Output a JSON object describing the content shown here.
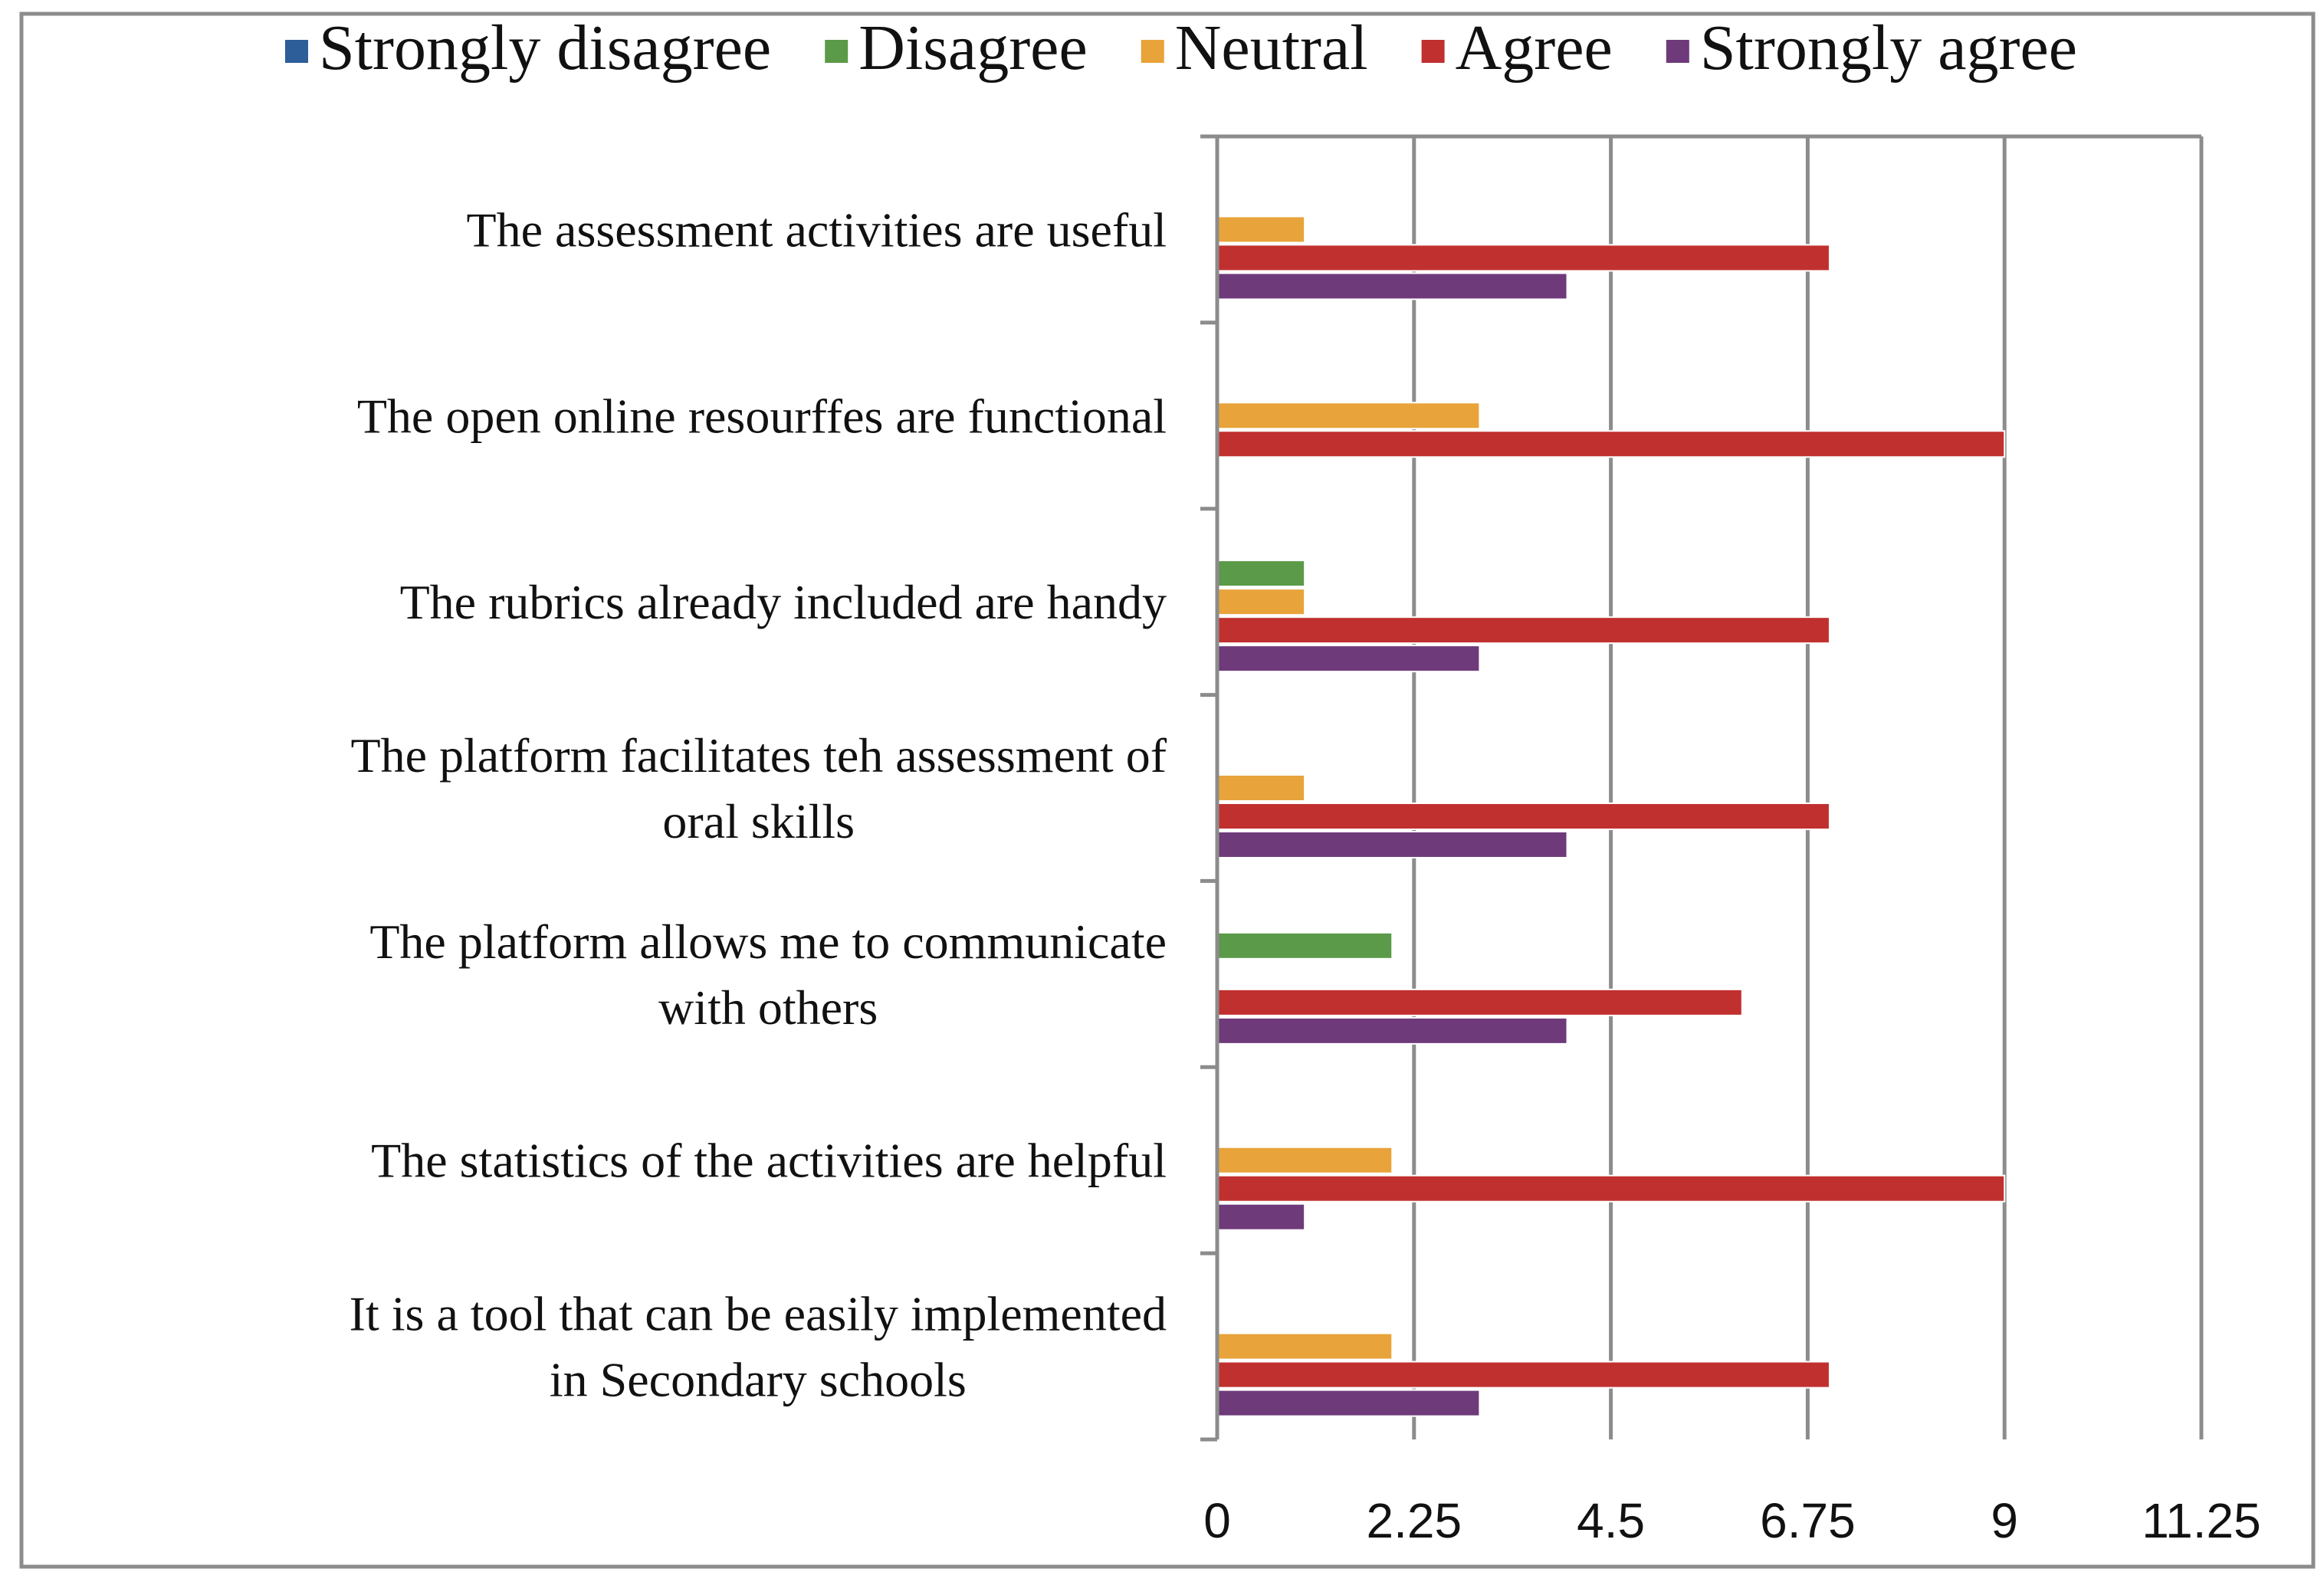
{
  "chart_data": {
    "type": "bar",
    "orientation": "horizontal",
    "title": "",
    "xlabel": "",
    "ylabel": "",
    "xlim": [
      0,
      11.25
    ],
    "ticks": [
      "0",
      "2.25",
      "4.5",
      "6.75",
      "9",
      "11.25"
    ],
    "tick_values": [
      0,
      2.25,
      4.5,
      6.75,
      9,
      11.25
    ],
    "grid": true,
    "legend_position": "top",
    "categories": [
      [
        "The assessment activities are useful"
      ],
      [
        "The open online resourffes are functional"
      ],
      [
        "The rubrics already included are handy"
      ],
      [
        "The platform facilitates teh assessment of",
        "oral skills"
      ],
      [
        "The platform allows me to communicate",
        "with others"
      ],
      [
        "The statistics of the activities are helpful"
      ],
      [
        "It is a tool that can be easily implemented",
        "in Secondary schools"
      ]
    ],
    "series": [
      {
        "name": "Strongly disagree",
        "color": "#2E5E99",
        "values": [
          0,
          0,
          0,
          0,
          0,
          0,
          0
        ]
      },
      {
        "name": "Disagree",
        "color": "#5B9A48",
        "values": [
          0,
          0,
          1,
          0,
          2,
          0,
          0
        ]
      },
      {
        "name": "Neutral",
        "color": "#E8A33A",
        "values": [
          1,
          3,
          1,
          1,
          0,
          2,
          2
        ]
      },
      {
        "name": "Agree",
        "color": "#C0302F",
        "values": [
          7,
          9,
          7,
          7,
          6,
          9,
          7
        ]
      },
      {
        "name": "Strongly agree",
        "color": "#6E3A7A",
        "values": [
          4,
          0,
          3,
          4,
          4,
          1,
          3
        ]
      }
    ]
  },
  "colors": {
    "grid": "#8C8C8C",
    "frame": "#8C8C8C",
    "text": "#111111"
  }
}
